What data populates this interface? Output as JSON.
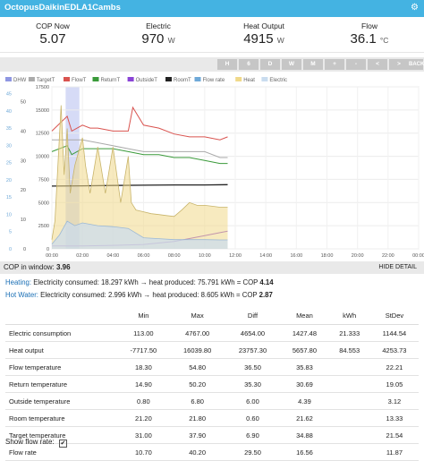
{
  "titlebar": {
    "title": "OctopusDaikinEDLA1Cambs",
    "settings_icon": "gear-icon"
  },
  "stats": [
    {
      "label": "COP Now",
      "value": "5.07",
      "unit": ""
    },
    {
      "label": "Electric",
      "value": "970",
      "unit": "W"
    },
    {
      "label": "Heat Output",
      "value": "4915",
      "unit": "W"
    },
    {
      "label": "Flow",
      "value": "36.1",
      "unit": "°C"
    }
  ],
  "nav": {
    "buttons": [
      "H",
      "6",
      "D",
      "W",
      "M",
      "+",
      "-",
      "<",
      ">",
      "BACK"
    ]
  },
  "chart_data": {
    "type": "line",
    "legend": [
      {
        "name": "DHW",
        "color": "#8f97e2"
      },
      {
        "name": "TargetT",
        "color": "#aaaaaa"
      },
      {
        "name": "FlowT",
        "color": "#d9534f"
      },
      {
        "name": "ReturnT",
        "color": "#3a9a3a"
      },
      {
        "name": "OutsideT",
        "color": "#8a44d6"
      },
      {
        "name": "RoomT",
        "color": "#222222"
      },
      {
        "name": "Flow rate",
        "color": "#6fa9d8"
      },
      {
        "name": "Heat",
        "color": "#f0d98a"
      },
      {
        "name": "Electric",
        "color": "#c9dcef"
      }
    ],
    "x_ticks": [
      "00:00",
      "02:00",
      "04:00",
      "06:00",
      "08:00",
      "10:00",
      "12:00",
      "14:00",
      "16:00",
      "18:00",
      "20:00",
      "22:00",
      "00:00"
    ],
    "y_left_ticks": [
      "0",
      "5",
      "10",
      "15",
      "20",
      "25",
      "30",
      "35",
      "40",
      "45"
    ],
    "y_temp_ticks": [
      "0",
      "10",
      "20",
      "30",
      "40",
      "50"
    ],
    "y_power_ticks": [
      "0",
      "2500",
      "5000",
      "7500",
      "10000",
      "12500",
      "15000",
      "17500"
    ],
    "y_power_lim": [
      0,
      17500
    ],
    "series": [
      {
        "name": "FlowT",
        "x": [
          0,
          1,
          1.3,
          2,
          2.5,
          3,
          4,
          5,
          5.3,
          6,
          7,
          8,
          9,
          10,
          11,
          11.5
        ],
        "y": [
          40,
          45,
          40,
          42,
          41,
          41,
          40,
          40,
          48,
          42,
          41,
          39,
          38,
          38,
          37,
          38
        ]
      },
      {
        "name": "TargetT",
        "x": [
          0,
          1,
          2,
          3,
          4,
          5,
          6,
          7,
          8,
          9,
          10,
          11,
          11.5
        ],
        "y": [
          37,
          37,
          37,
          36,
          35,
          34,
          33,
          33,
          33,
          33,
          33,
          31,
          31
        ]
      },
      {
        "name": "ReturnT",
        "x": [
          0,
          1,
          1.3,
          2,
          3,
          4,
          5,
          6,
          7,
          8,
          9,
          10,
          11,
          11.5
        ],
        "y": [
          33,
          35,
          32,
          34,
          34,
          34,
          33,
          32,
          32,
          31,
          31,
          30,
          29,
          29
        ]
      },
      {
        "name": "RoomT",
        "x": [
          0,
          2,
          4,
          6,
          8,
          10,
          11.5
        ],
        "y": [
          21.3,
          21.4,
          21.5,
          21.6,
          21.7,
          21.7,
          21.8
        ]
      },
      {
        "name": "OutsideT",
        "x": [
          0,
          2,
          4,
          6,
          8,
          9,
          10,
          11,
          11.5
        ],
        "y": [
          1,
          1,
          1.2,
          1.5,
          2.5,
          3.5,
          4.5,
          5.5,
          6
        ]
      },
      {
        "name": "Heat",
        "x": [
          0,
          0.2,
          0.6,
          0.8,
          1,
          1.2,
          1.5,
          2,
          2.2,
          2.5,
          3,
          3.5,
          4,
          4.5,
          5,
          5.2,
          5.5,
          6,
          6.5,
          7,
          7.5,
          8,
          8.5,
          9,
          9.5,
          10,
          10.5,
          11,
          11.5
        ],
        "y": [
          1000,
          3000,
          15500,
          8000,
          13000,
          6000,
          9000,
          12000,
          9000,
          6000,
          11000,
          6000,
          11000,
          5000,
          10000,
          5000,
          4200,
          4000,
          3800,
          3700,
          3600,
          3500,
          4200,
          5000,
          4700,
          4700,
          4600,
          4500,
          4500
        ]
      },
      {
        "name": "Electric",
        "x": [
          0,
          0.5,
          1,
          1.5,
          2,
          3,
          4,
          5,
          6,
          7,
          8,
          9,
          10,
          11,
          11.5
        ],
        "y": [
          500,
          1500,
          3000,
          2500,
          2800,
          2500,
          2400,
          2200,
          1200,
          1100,
          1000,
          1000,
          1000,
          970,
          970
        ]
      }
    ]
  },
  "cop_window": {
    "label": "COP in window:",
    "value": "3.96",
    "hide_label": "HIDE DETAIL"
  },
  "heating": {
    "title": "Heating:",
    "text": "Electricity consumed: 18.297 kWh → heat produced: 75.791 kWh = COP",
    "cop": "4.14"
  },
  "hotwater": {
    "title": "Hot Water:",
    "text": "Electricity consumed: 2.996 kWh → heat produced: 8.605 kWh = COP",
    "cop": "2.87"
  },
  "table": {
    "headers": [
      "",
      "Min",
      "Max",
      "Diff",
      "Mean",
      "kWh",
      "StDev"
    ],
    "rows": [
      [
        "Electric consumption",
        "113.00",
        "4767.00",
        "4654.00",
        "1427.48",
        "21.333",
        "1144.54"
      ],
      [
        "Heat output",
        "-7717.50",
        "16039.80",
        "23757.30",
        "5657.80",
        "84.553",
        "4253.73"
      ],
      [
        "Flow temperature",
        "18.30",
        "54.80",
        "36.50",
        "35.83",
        "",
        "22.21"
      ],
      [
        "Return temperature",
        "14.90",
        "50.20",
        "35.30",
        "30.69",
        "",
        "19.05"
      ],
      [
        "Outside temperature",
        "0.80",
        "6.80",
        "6.00",
        "4.39",
        "",
        "3.12"
      ],
      [
        "Room temperature",
        "21.20",
        "21.80",
        "0.60",
        "21.62",
        "",
        "13.33"
      ],
      [
        "Target temperature",
        "31.00",
        "37.90",
        "6.90",
        "34.88",
        "",
        "21.54"
      ],
      [
        "Flow rate",
        "10.70",
        "40.20",
        "29.50",
        "16.56",
        "",
        "11.87"
      ]
    ]
  },
  "flowrate": {
    "label": "Show flow rate:",
    "checked": true
  }
}
